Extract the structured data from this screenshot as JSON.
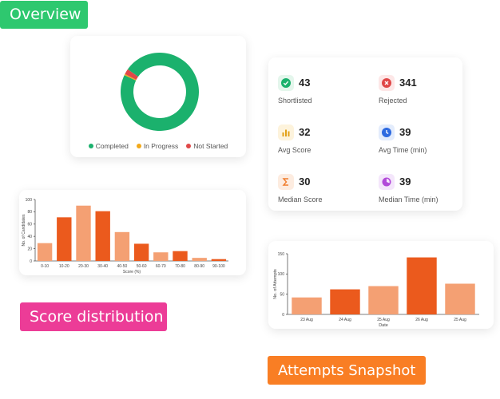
{
  "tags": {
    "overview": "Overview",
    "score_distribution": "Score distribution",
    "attempts_snapshot": "Attempts Snapshot"
  },
  "donut": {
    "segments": [
      {
        "label": "Completed",
        "color": "#1bb16d",
        "value": 97.3
      },
      {
        "label": "In Progress",
        "color": "#f2a91a",
        "value": 0.5
      },
      {
        "label": "Not Started",
        "color": "#e04848",
        "value": 2.2
      }
    ],
    "legend": [
      "Completed",
      "In Progress",
      "Not Started"
    ]
  },
  "stats": [
    {
      "value": "43",
      "label": "Shortlisted",
      "icon": "check-circle-icon",
      "color": "#1bb16d",
      "bg": "#e4f6ec"
    },
    {
      "value": "341",
      "label": "Rejected",
      "icon": "x-circle-icon",
      "color": "#e04848",
      "bg": "#fde7e7"
    },
    {
      "value": "32",
      "label": "Avg Score",
      "icon": "bar-chart-icon",
      "color": "#e2a117",
      "bg": "#fdf3dc"
    },
    {
      "value": "39",
      "label": "Avg Time (min)",
      "icon": "clock-icon",
      "color": "#2d6ae0",
      "bg": "#e3ecfc"
    },
    {
      "value": "30",
      "label": "Median Score",
      "icon": "sigma-icon",
      "color": "#f07c2c",
      "bg": "#fdece0"
    },
    {
      "value": "39",
      "label": "Median Time (min)",
      "icon": "timer-icon",
      "color": "#b24ad9",
      "bg": "#f4e6fb"
    }
  ],
  "chart_data": [
    {
      "type": "bar",
      "categories": [
        "0-10",
        "10-20",
        "20-30",
        "30-40",
        "40-50",
        "50-60",
        "60-70",
        "70-80",
        "80-90",
        "90-100"
      ],
      "values": [
        29,
        71,
        90,
        81,
        47,
        28,
        14,
        16,
        5,
        3
      ],
      "colors": [
        "#f4a073",
        "#eb5a1d",
        "#f4a073",
        "#eb5a1d",
        "#f4a073",
        "#eb5a1d",
        "#f4a073",
        "#eb5a1d",
        "#f4a073",
        "#eb5a1d"
      ],
      "xlabel": "Score (%)",
      "ylabel": "No. of Candidates",
      "ylim": [
        0,
        100
      ],
      "yticks": [
        0,
        20,
        40,
        60,
        80,
        100
      ],
      "grid": false
    },
    {
      "type": "bar",
      "categories": [
        "23 Aug",
        "24 Aug",
        "25 Aug",
        "26 Aug",
        "25 Aug"
      ],
      "values": [
        42,
        62,
        70,
        141,
        76
      ],
      "colors": [
        "#f4a073",
        "#eb5a1d",
        "#f4a073",
        "#eb5a1d",
        "#f4a073"
      ],
      "xlabel": "Date",
      "ylabel": "No. of Attempts",
      "ylim": [
        0,
        150
      ],
      "yticks": [
        0,
        50,
        100,
        150
      ],
      "grid": false
    }
  ]
}
